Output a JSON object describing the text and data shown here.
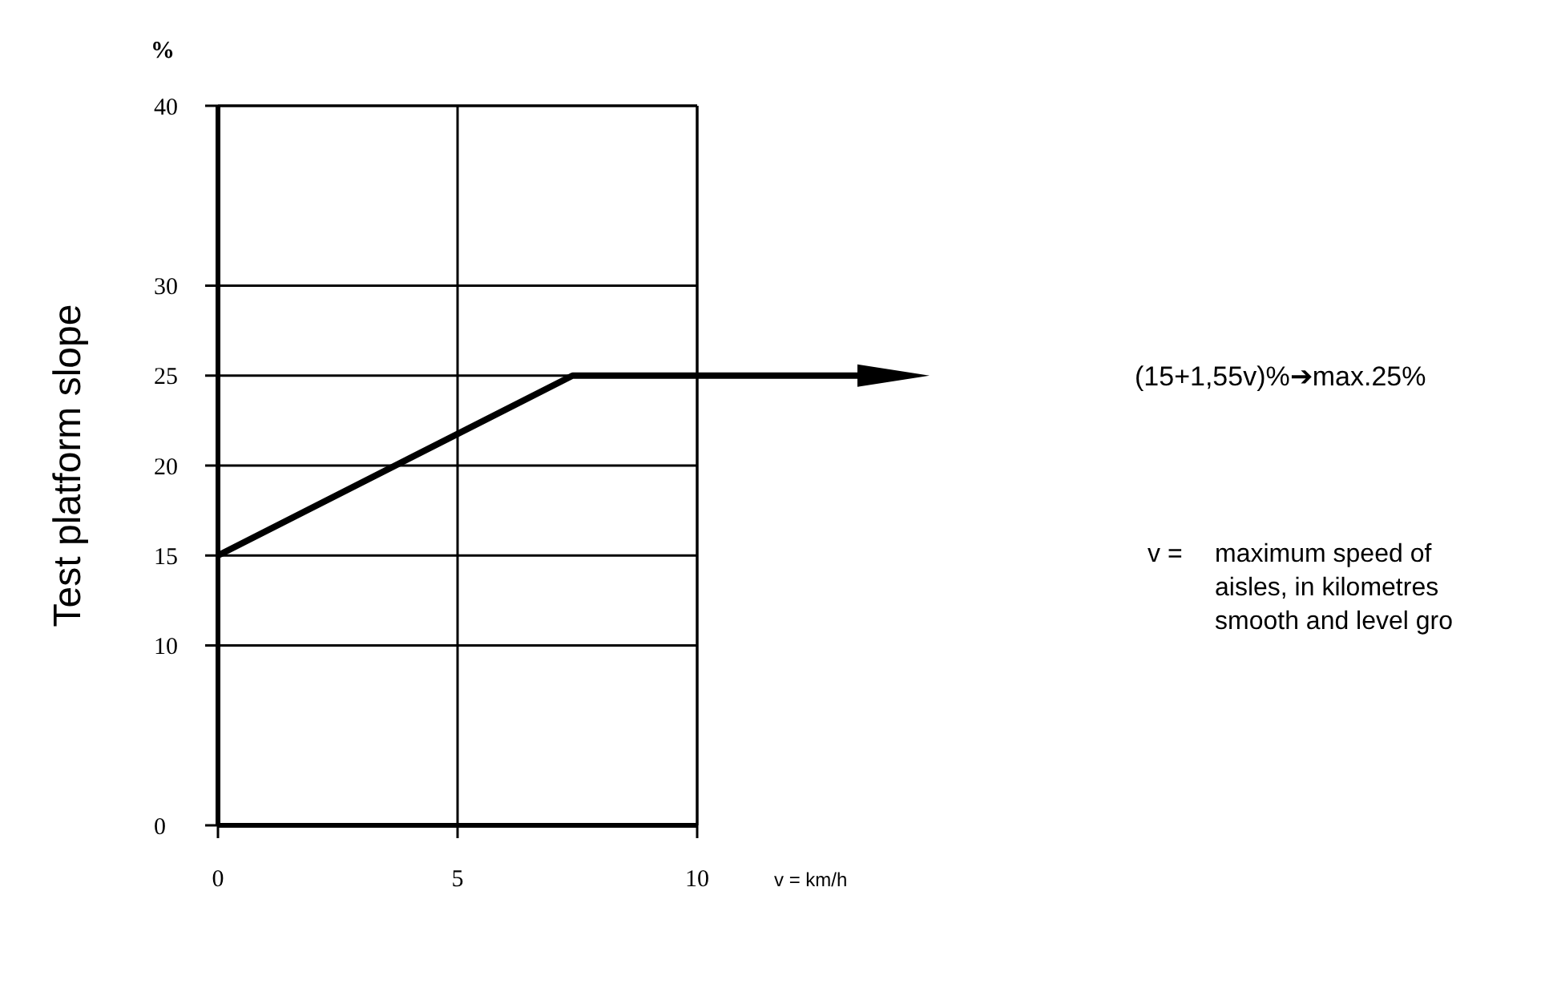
{
  "chart_data": {
    "type": "line",
    "xlabel": "v = km/h",
    "ylabel": "Test platform slope",
    "x": [
      0,
      7.4,
      10
    ],
    "series": [
      {
        "color": "#000000",
        "values": [
          15,
          25,
          25
        ]
      }
    ],
    "xlim": [
      0,
      10
    ],
    "xticks": [
      0,
      5,
      10
    ],
    "ylim": [
      0,
      40
    ],
    "yticks": [
      0,
      10,
      15,
      20,
      25,
      30,
      40
    ],
    "grid": true,
    "marker": "none",
    "line_style": "solid",
    "annotations": [
      "%",
      "(15+1,55v)%➔max.25%",
      "v = maximum speed of\naisles, in kilometres\nsmooth and level gro"
    ]
  }
}
